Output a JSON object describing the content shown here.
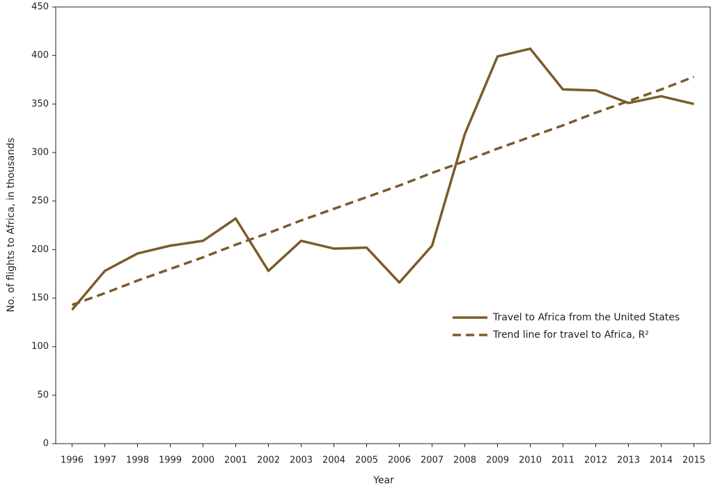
{
  "chart_data": {
    "type": "line",
    "x_label": "Year",
    "y_label": "No. of flights to Africa, in thousands",
    "categories": [
      "1996",
      "1997",
      "1998",
      "1999",
      "2000",
      "2001",
      "2002",
      "2003",
      "2004",
      "2005",
      "2006",
      "2007",
      "2008",
      "2009",
      "2010",
      "2011",
      "2012",
      "2013",
      "2014",
      "2015"
    ],
    "series": [
      {
        "name": "Travel to Africa from the United States",
        "color": "#7b5b2b",
        "dash": false,
        "values": [
          138,
          178,
          196,
          204,
          209,
          232,
          178,
          209,
          201,
          202,
          166,
          204,
          319,
          399,
          407,
          365,
          364,
          351,
          358,
          350
        ]
      },
      {
        "name": "Trend line for travel to Africa, R²",
        "color": "#7b5b2b",
        "dash": true,
        "values": [
          143,
          155,
          168,
          180,
          192,
          205,
          217,
          230,
          242,
          254,
          266,
          279,
          291,
          304,
          316,
          328,
          341,
          353,
          365,
          378
        ]
      }
    ],
    "ylim": [
      0,
      450
    ],
    "yticks": [
      0,
      50,
      100,
      150,
      200,
      250,
      300,
      350,
      400,
      450
    ],
    "grid": false,
    "legend": "right"
  }
}
